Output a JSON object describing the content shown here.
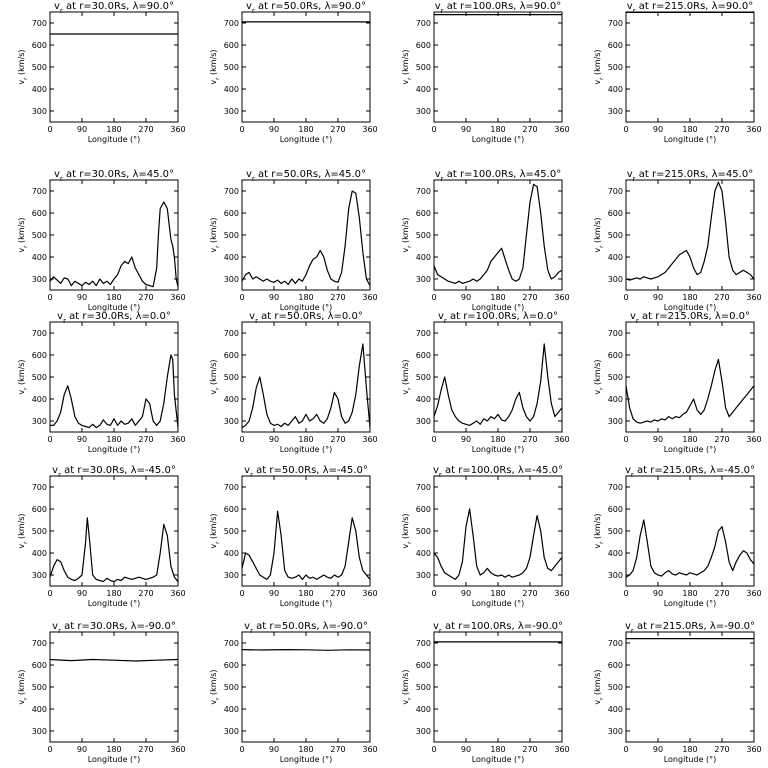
{
  "chart_data": {
    "type": "line",
    "layout": {
      "rows": 5,
      "cols": 4
    },
    "xlabel": "Longitude (°)",
    "ylabel": "v<sub>r</sub> (km/s)",
    "xlim": [
      0,
      360
    ],
    "ylim": [
      250,
      750
    ],
    "xticks": [
      0,
      90,
      180,
      270,
      360
    ],
    "yticks": [
      300,
      400,
      500,
      600,
      700
    ],
    "panels": [
      {
        "title": "v<sub>r</sub> at r=30.0Rs, λ=90.0°",
        "x": [
          0,
          360
        ],
        "y": [
          650,
          650
        ]
      },
      {
        "title": "v<sub>r</sub> at r=50.0Rs, λ=90.0°",
        "x": [
          0,
          360
        ],
        "y": [
          705,
          705
        ]
      },
      {
        "title": "v<sub>r</sub> at r=100.0Rs, λ=90.0°",
        "x": [
          0,
          360
        ],
        "y": [
          738,
          738
        ]
      },
      {
        "title": "v<sub>r</sub> at r=215.0Rs, λ=90.0°",
        "x": [
          0,
          360
        ],
        "y": [
          748,
          748
        ]
      },
      {
        "title": "v<sub>r</sub> at r=30.0Rs, λ=45.0°",
        "x": [
          0,
          10,
          20,
          30,
          40,
          50,
          60,
          70,
          80,
          90,
          100,
          110,
          120,
          130,
          140,
          150,
          160,
          170,
          180,
          190,
          200,
          210,
          220,
          230,
          240,
          250,
          260,
          270,
          280,
          290,
          300,
          305,
          310,
          320,
          330,
          340,
          345,
          350,
          355,
          360
        ],
        "y": [
          290,
          310,
          295,
          280,
          305,
          300,
          270,
          290,
          280,
          270,
          285,
          275,
          290,
          270,
          300,
          280,
          290,
          275,
          300,
          320,
          360,
          380,
          370,
          400,
          350,
          320,
          290,
          275,
          270,
          265,
          350,
          500,
          620,
          650,
          620,
          480,
          450,
          400,
          300,
          265
        ]
      },
      {
        "title": "v<sub>r</sub> at r=50.0Rs, λ=45.0°",
        "x": [
          0,
          10,
          20,
          30,
          40,
          50,
          60,
          70,
          80,
          90,
          100,
          110,
          120,
          130,
          140,
          150,
          160,
          170,
          180,
          190,
          200,
          210,
          220,
          230,
          240,
          250,
          260,
          270,
          280,
          290,
          300,
          310,
          320,
          330,
          340,
          350,
          360
        ],
        "y": [
          290,
          320,
          330,
          300,
          310,
          300,
          290,
          300,
          290,
          285,
          295,
          280,
          290,
          275,
          300,
          280,
          300,
          290,
          320,
          360,
          390,
          400,
          430,
          400,
          340,
          300,
          290,
          285,
          330,
          450,
          620,
          700,
          690,
          580,
          420,
          300,
          270
        ]
      },
      {
        "title": "v<sub>r</sub> at r=100.0Rs, λ=45.0°",
        "x": [
          0,
          10,
          20,
          30,
          40,
          50,
          60,
          70,
          80,
          90,
          100,
          110,
          120,
          130,
          140,
          150,
          160,
          170,
          180,
          190,
          200,
          210,
          220,
          230,
          240,
          250,
          260,
          270,
          280,
          290,
          300,
          310,
          320,
          330,
          340,
          350,
          360
        ],
        "y": [
          360,
          320,
          310,
          300,
          290,
          285,
          280,
          290,
          280,
          285,
          290,
          300,
          290,
          300,
          320,
          340,
          380,
          400,
          420,
          440,
          390,
          340,
          300,
          290,
          300,
          350,
          500,
          650,
          730,
          720,
          600,
          450,
          340,
          300,
          310,
          330,
          340
        ]
      },
      {
        "title": "v<sub>r</sub> at r=215.0Rs, λ=45.0°",
        "x": [
          0,
          10,
          20,
          30,
          40,
          50,
          60,
          70,
          80,
          90,
          100,
          110,
          120,
          130,
          140,
          150,
          160,
          170,
          180,
          190,
          200,
          210,
          220,
          230,
          240,
          250,
          260,
          270,
          280,
          290,
          300,
          310,
          320,
          330,
          340,
          350,
          360
        ],
        "y": [
          300,
          295,
          300,
          305,
          300,
          310,
          305,
          300,
          305,
          310,
          320,
          330,
          350,
          370,
          390,
          410,
          420,
          430,
          400,
          350,
          320,
          330,
          380,
          450,
          580,
          700,
          740,
          700,
          560,
          400,
          340,
          320,
          330,
          340,
          330,
          320,
          300
        ]
      },
      {
        "title": "v<sub>r</sub> at r=30.0Rs, λ=0.0°",
        "x": [
          0,
          10,
          20,
          30,
          40,
          50,
          60,
          70,
          80,
          90,
          100,
          110,
          120,
          130,
          140,
          150,
          160,
          170,
          180,
          190,
          200,
          210,
          220,
          230,
          240,
          250,
          260,
          270,
          280,
          290,
          300,
          310,
          320,
          330,
          340,
          345,
          350,
          360
        ],
        "y": [
          280,
          280,
          300,
          340,
          420,
          460,
          400,
          320,
          290,
          280,
          275,
          270,
          285,
          270,
          280,
          305,
          285,
          280,
          310,
          280,
          300,
          285,
          290,
          310,
          280,
          300,
          320,
          400,
          380,
          300,
          280,
          300,
          380,
          500,
          600,
          580,
          420,
          270
        ]
      },
      {
        "title": "v<sub>r</sub> at r=50.0Rs, λ=0.0°",
        "x": [
          0,
          10,
          20,
          30,
          40,
          50,
          60,
          70,
          80,
          90,
          100,
          110,
          120,
          130,
          140,
          150,
          160,
          170,
          180,
          190,
          200,
          210,
          220,
          230,
          240,
          250,
          260,
          270,
          280,
          290,
          300,
          310,
          320,
          330,
          340,
          350,
          360
        ],
        "y": [
          270,
          280,
          300,
          360,
          450,
          500,
          420,
          330,
          290,
          280,
          285,
          275,
          290,
          280,
          300,
          320,
          290,
          300,
          330,
          300,
          310,
          330,
          300,
          290,
          310,
          360,
          430,
          400,
          320,
          290,
          300,
          340,
          420,
          550,
          650,
          450,
          270
        ]
      },
      {
        "title": "v<sub>r</sub> at r=100.0Rs, λ=0.0°",
        "x": [
          0,
          10,
          20,
          30,
          40,
          50,
          60,
          70,
          80,
          90,
          100,
          110,
          120,
          130,
          140,
          150,
          160,
          170,
          180,
          190,
          200,
          210,
          220,
          230,
          240,
          250,
          260,
          270,
          280,
          290,
          300,
          310,
          320,
          330,
          340,
          350,
          360
        ],
        "y": [
          320,
          370,
          440,
          500,
          420,
          350,
          320,
          300,
          290,
          285,
          280,
          290,
          300,
          285,
          310,
          300,
          320,
          310,
          330,
          305,
          300,
          320,
          350,
          400,
          430,
          360,
          320,
          300,
          320,
          380,
          480,
          650,
          500,
          380,
          320,
          340,
          360
        ]
      },
      {
        "title": "v<sub>r</sub> at r=215.0Rs, λ=0.0°",
        "x": [
          0,
          10,
          20,
          30,
          40,
          50,
          60,
          70,
          80,
          90,
          100,
          110,
          120,
          130,
          140,
          150,
          160,
          170,
          180,
          190,
          200,
          210,
          220,
          230,
          240,
          250,
          260,
          270,
          280,
          290,
          300,
          310,
          320,
          330,
          340,
          350,
          360
        ],
        "y": [
          460,
          360,
          310,
          295,
          290,
          295,
          300,
          295,
          305,
          300,
          310,
          305,
          320,
          310,
          320,
          315,
          330,
          340,
          370,
          400,
          350,
          330,
          350,
          400,
          460,
          530,
          580,
          480,
          360,
          320,
          340,
          360,
          380,
          400,
          420,
          440,
          460
        ]
      },
      {
        "title": "v<sub>r</sub> at r=30.0Rs, λ=-45.0°",
        "x": [
          0,
          10,
          20,
          30,
          40,
          50,
          60,
          70,
          80,
          90,
          100,
          105,
          110,
          120,
          130,
          140,
          150,
          160,
          170,
          180,
          190,
          200,
          210,
          220,
          230,
          240,
          250,
          260,
          270,
          280,
          290,
          300,
          310,
          320,
          330,
          340,
          350,
          360
        ],
        "y": [
          290,
          340,
          370,
          360,
          320,
          290,
          280,
          275,
          285,
          300,
          450,
          560,
          480,
          300,
          280,
          275,
          270,
          285,
          275,
          270,
          280,
          275,
          290,
          285,
          280,
          285,
          290,
          285,
          280,
          285,
          290,
          300,
          400,
          530,
          480,
          340,
          290,
          270
        ]
      },
      {
        "title": "v<sub>r</sub> at r=50.0Rs, λ=-45.0°",
        "x": [
          0,
          10,
          20,
          30,
          40,
          50,
          60,
          70,
          80,
          90,
          100,
          110,
          120,
          130,
          140,
          150,
          160,
          170,
          180,
          190,
          200,
          210,
          220,
          230,
          240,
          250,
          260,
          270,
          280,
          290,
          300,
          310,
          320,
          330,
          340,
          350,
          360
        ],
        "y": [
          330,
          400,
          390,
          360,
          330,
          300,
          290,
          280,
          300,
          400,
          590,
          480,
          320,
          290,
          285,
          290,
          300,
          280,
          300,
          285,
          290,
          280,
          290,
          300,
          290,
          285,
          300,
          290,
          300,
          340,
          450,
          560,
          500,
          380,
          320,
          300,
          280
        ]
      },
      {
        "title": "v<sub>r</sub> at r=100.0Rs, λ=-45.0°",
        "x": [
          0,
          10,
          20,
          30,
          40,
          50,
          60,
          70,
          80,
          90,
          100,
          110,
          120,
          130,
          140,
          150,
          160,
          170,
          180,
          190,
          200,
          210,
          220,
          230,
          240,
          250,
          260,
          270,
          280,
          290,
          300,
          310,
          320,
          330,
          340,
          350,
          360
        ],
        "y": [
          400,
          380,
          340,
          310,
          300,
          290,
          280,
          300,
          360,
          520,
          600,
          480,
          340,
          300,
          310,
          330,
          310,
          300,
          295,
          300,
          290,
          300,
          290,
          295,
          300,
          310,
          330,
          380,
          480,
          570,
          500,
          380,
          330,
          320,
          340,
          360,
          380
        ]
      },
      {
        "title": "v<sub>r</sub> at r=215.0Rs, λ=-45.0°",
        "x": [
          0,
          10,
          20,
          30,
          40,
          50,
          60,
          70,
          80,
          90,
          100,
          110,
          120,
          130,
          140,
          150,
          160,
          170,
          180,
          190,
          200,
          210,
          220,
          230,
          240,
          250,
          260,
          270,
          280,
          290,
          300,
          310,
          320,
          330,
          340,
          350,
          360
        ],
        "y": [
          290,
          300,
          320,
          380,
          480,
          550,
          450,
          340,
          310,
          300,
          295,
          310,
          320,
          305,
          300,
          310,
          305,
          300,
          310,
          305,
          300,
          310,
          320,
          340,
          380,
          430,
          500,
          520,
          450,
          360,
          320,
          360,
          390,
          410,
          400,
          370,
          350
        ]
      },
      {
        "title": "v<sub>r</sub> at r=30.0Rs, λ=-90.0°",
        "x": [
          0,
          60,
          120,
          180,
          240,
          300,
          360
        ],
        "y": [
          625,
          620,
          625,
          622,
          618,
          622,
          625
        ]
      },
      {
        "title": "v<sub>r</sub> at r=50.0Rs, λ=-90.0°",
        "x": [
          0,
          60,
          120,
          180,
          240,
          300,
          360
        ],
        "y": [
          670,
          668,
          670,
          669,
          667,
          669,
          668
        ]
      },
      {
        "title": "v<sub>r</sub> at r=100.0Rs, λ=-90.0°",
        "x": [
          0,
          360
        ],
        "y": [
          705,
          705
        ]
      },
      {
        "title": "v<sub>r</sub> at r=215.0Rs, λ=-90.0°",
        "x": [
          0,
          360
        ],
        "y": [
          720,
          720
        ]
      }
    ]
  }
}
